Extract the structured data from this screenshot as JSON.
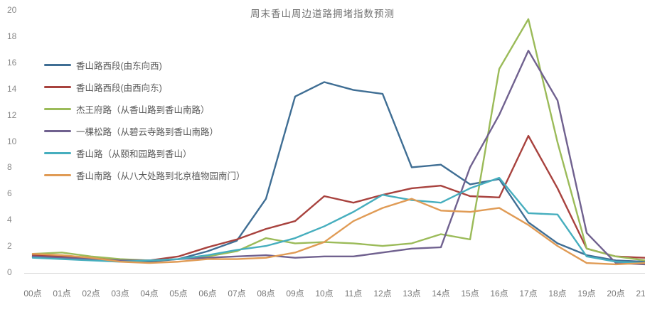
{
  "title": "周末香山周边道路拥堵指数预测",
  "chart_data": {
    "type": "line",
    "title": "周末香山周边道路拥堵指数预测",
    "xlabel": "",
    "ylabel": "",
    "x": [
      "00点",
      "01点",
      "02点",
      "03点",
      "04点",
      "05点",
      "06点",
      "07点",
      "08点",
      "09点",
      "10点",
      "11点",
      "12点",
      "13点",
      "14点",
      "15点",
      "16点",
      "17点",
      "18点",
      "19点",
      "20点",
      "21点"
    ],
    "ylim": [
      0,
      20
    ],
    "yticks": [
      0,
      2,
      4,
      6,
      8,
      10,
      12,
      14,
      16,
      18,
      20
    ],
    "grid": false,
    "legend_position": "top-left",
    "series": [
      {
        "name": "香山路西段(由东向西)",
        "color": "#3f6e94",
        "values": [
          1.2,
          1.2,
          1.1,
          0.9,
          0.8,
          1.0,
          1.6,
          2.4,
          5.6,
          13.4,
          14.5,
          13.9,
          13.6,
          8.0,
          8.2,
          6.7,
          7.1,
          3.8,
          2.2,
          1.3,
          0.9,
          0.8
        ]
      },
      {
        "name": "香山路西段(由西向东)",
        "color": "#a8423e",
        "values": [
          1.3,
          1.2,
          1.1,
          0.9,
          0.9,
          1.2,
          1.9,
          2.5,
          3.3,
          3.9,
          5.8,
          5.3,
          5.9,
          6.4,
          6.6,
          5.8,
          5.7,
          10.4,
          6.4,
          1.8,
          1.2,
          1.1
        ]
      },
      {
        "name": "杰王府路（从香山路到香山南路）",
        "color": "#9bbb59",
        "values": [
          1.4,
          1.5,
          1.2,
          1.0,
          0.9,
          1.0,
          1.2,
          1.6,
          2.6,
          2.2,
          2.3,
          2.2,
          2.0,
          2.2,
          2.9,
          2.5,
          15.5,
          19.3,
          9.9,
          1.8,
          1.2,
          0.9
        ]
      },
      {
        "name": "一棵松路（从碧云寺路到香山南路）",
        "color": "#70618f",
        "values": [
          1.2,
          1.1,
          1.0,
          0.9,
          0.9,
          1.0,
          1.1,
          1.2,
          1.3,
          1.1,
          1.2,
          1.2,
          1.5,
          1.8,
          1.9,
          8.0,
          12.0,
          16.9,
          13.1,
          3.0,
          0.7,
          0.6
        ]
      },
      {
        "name": "香山路（从颐和园路到香山）",
        "color": "#46aebe",
        "values": [
          1.1,
          1.0,
          0.9,
          0.8,
          0.9,
          1.0,
          1.3,
          1.7,
          2.0,
          2.6,
          3.5,
          4.6,
          5.9,
          5.5,
          5.3,
          6.4,
          7.2,
          4.5,
          4.4,
          1.2,
          0.8,
          0.7
        ]
      },
      {
        "name": "香山南路（从八大处路到北京植物园南门）",
        "color": "#e09b55",
        "values": [
          1.4,
          1.3,
          1.1,
          0.8,
          0.7,
          0.8,
          1.0,
          1.0,
          1.1,
          1.5,
          2.3,
          3.9,
          4.9,
          5.6,
          4.7,
          4.6,
          4.9,
          3.6,
          2.0,
          0.7,
          0.6,
          0.7
        ]
      }
    ]
  }
}
